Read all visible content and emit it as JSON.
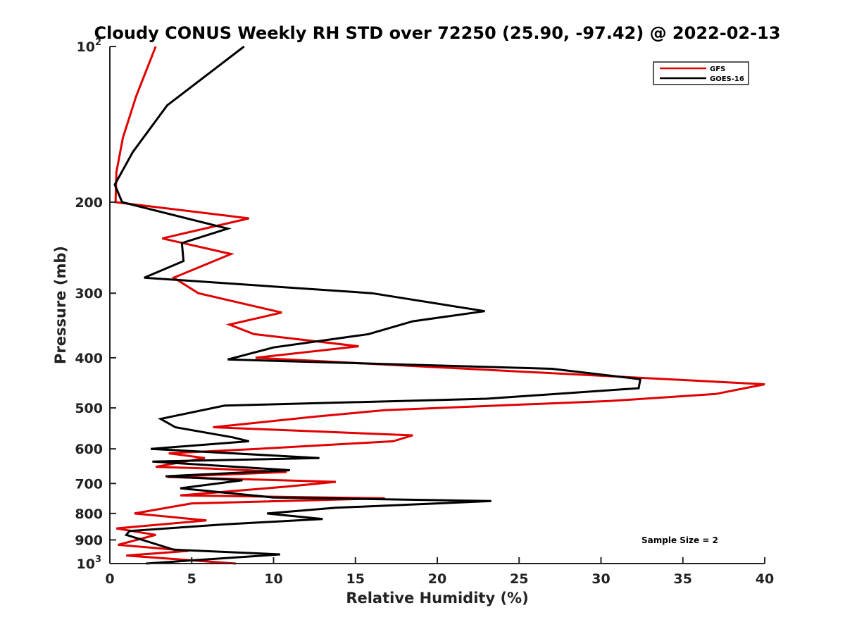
{
  "chart_data": {
    "type": "line",
    "title": "Cloudy CONUS Weekly RH STD over 72250 (25.90, -97.42) @ 2022-02-13",
    "xlabel": "Relative Humidity (%)",
    "ylabel": "Pressure (mb)",
    "xlim": [
      0,
      40
    ],
    "ylim": [
      100,
      1000
    ],
    "y_scale": "log",
    "y_reversed": true,
    "grid": false,
    "legend_position": "top-right",
    "x_ticks": [
      "0",
      "5",
      "10",
      "15",
      "20",
      "25",
      "30",
      "35",
      "40"
    ],
    "x_tick_values": [
      0,
      5,
      10,
      15,
      20,
      25,
      30,
      35,
      40
    ],
    "y_ticks": [
      {
        "value": 100,
        "label": "10",
        "exp": "2"
      },
      {
        "value": 200,
        "label": "200",
        "exp": ""
      },
      {
        "value": 300,
        "label": "300",
        "exp": ""
      },
      {
        "value": 400,
        "label": "400",
        "exp": ""
      },
      {
        "value": 500,
        "label": "500",
        "exp": ""
      },
      {
        "value": 600,
        "label": "600",
        "exp": ""
      },
      {
        "value": 700,
        "label": "700",
        "exp": ""
      },
      {
        "value": 800,
        "label": "800",
        "exp": ""
      },
      {
        "value": 900,
        "label": "900",
        "exp": ""
      },
      {
        "value": 1000,
        "label": "10",
        "exp": "3"
      }
    ],
    "annotation": "Sample Size = 2",
    "series": [
      {
        "name": "GFS",
        "color": "#e00000",
        "points": [
          [
            2.8,
            100
          ],
          [
            1.6,
            125
          ],
          [
            0.8,
            150
          ],
          [
            0.4,
            175
          ],
          [
            0.35,
            200
          ],
          [
            8.5,
            215
          ],
          [
            3.2,
            235
          ],
          [
            7.4,
            252
          ],
          [
            3.9,
            280
          ],
          [
            5.4,
            300
          ],
          [
            10.5,
            327
          ],
          [
            7.3,
            345
          ],
          [
            8.8,
            360
          ],
          [
            15.2,
            380
          ],
          [
            8.9,
            400
          ],
          [
            40.0,
            450
          ],
          [
            37.0,
            470
          ],
          [
            30.5,
            485
          ],
          [
            16.8,
            505
          ],
          [
            12.5,
            520
          ],
          [
            6.3,
            545
          ],
          [
            18.5,
            565
          ],
          [
            17.3,
            580
          ],
          [
            9.0,
            600
          ],
          [
            3.6,
            612
          ],
          [
            5.8,
            625
          ],
          [
            2.8,
            650
          ],
          [
            6.1,
            655
          ],
          [
            10.8,
            665
          ],
          [
            3.5,
            680
          ],
          [
            13.8,
            695
          ],
          [
            10.8,
            710
          ],
          [
            4.3,
            738
          ],
          [
            16.8,
            748
          ],
          [
            5.0,
            765
          ],
          [
            1.5,
            800
          ],
          [
            5.9,
            825
          ],
          [
            0.4,
            855
          ],
          [
            2.8,
            880
          ],
          [
            0.5,
            920
          ],
          [
            4.8,
            945
          ],
          [
            1.0,
            965
          ],
          [
            7.7,
            1000
          ]
        ]
      },
      {
        "name": "GOES-16",
        "color": "#000000",
        "points": [
          [
            8.2,
            100
          ],
          [
            3.5,
            130
          ],
          [
            1.4,
            160
          ],
          [
            0.3,
            185
          ],
          [
            0.75,
            200
          ],
          [
            7.2,
            225
          ],
          [
            4.4,
            240
          ],
          [
            4.5,
            260
          ],
          [
            2.1,
            280
          ],
          [
            16.0,
            300
          ],
          [
            22.9,
            325
          ],
          [
            18.5,
            340
          ],
          [
            15.8,
            360
          ],
          [
            10.0,
            382
          ],
          [
            7.2,
            403
          ],
          [
            27.0,
            420
          ],
          [
            32.4,
            440
          ],
          [
            32.3,
            458
          ],
          [
            23.0,
            480
          ],
          [
            7.0,
            495
          ],
          [
            3.1,
            525
          ],
          [
            4.0,
            545
          ],
          [
            7.5,
            570
          ],
          [
            8.5,
            580
          ],
          [
            2.5,
            600
          ],
          [
            12.8,
            625
          ],
          [
            2.6,
            635
          ],
          [
            11.0,
            660
          ],
          [
            3.4,
            678
          ],
          [
            8.1,
            690
          ],
          [
            4.3,
            715
          ],
          [
            10.0,
            745
          ],
          [
            23.3,
            757
          ],
          [
            13.8,
            780
          ],
          [
            9.6,
            800
          ],
          [
            13.0,
            820
          ],
          [
            7.0,
            840
          ],
          [
            1.2,
            865
          ],
          [
            1.0,
            880
          ],
          [
            3.9,
            940
          ],
          [
            10.4,
            960
          ],
          [
            2.2,
            1000
          ]
        ]
      }
    ]
  }
}
